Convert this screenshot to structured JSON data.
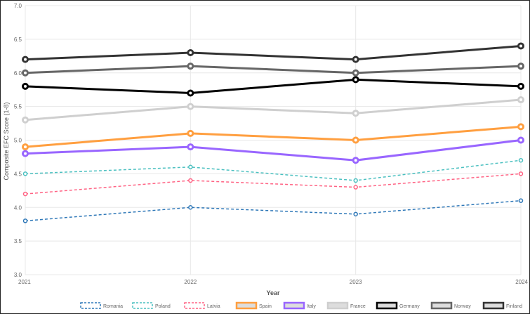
{
  "chart_data": {
    "type": "line",
    "xlabel": "Year",
    "ylabel": "Composite EFC Score (1-8)",
    "categories": [
      "2021",
      "2022",
      "2023",
      "2024"
    ],
    "ylim": [
      3.0,
      7.0
    ],
    "yticks": [
      "3.0",
      "3.5",
      "4.0",
      "4.5",
      "5.0",
      "5.5",
      "6.0",
      "6.5",
      "7.0"
    ],
    "grid": true,
    "legend": "bottom",
    "series": [
      {
        "name": "Romania",
        "values": [
          3.8,
          4.0,
          3.9,
          4.1
        ],
        "color": "#2f78b8",
        "dashed": true
      },
      {
        "name": "Poland",
        "values": [
          4.5,
          4.6,
          4.4,
          4.7
        ],
        "color": "#4bc0c0",
        "dashed": true
      },
      {
        "name": "Latvia",
        "values": [
          4.2,
          4.4,
          4.3,
          4.5
        ],
        "color": "#ff6384",
        "dashed": true
      },
      {
        "name": "Spain",
        "values": [
          4.9,
          5.1,
          5.0,
          5.2
        ],
        "color": "#ff9f40",
        "dashed": false
      },
      {
        "name": "Italy",
        "values": [
          4.8,
          4.9,
          4.7,
          5.0
        ],
        "color": "#9966ff",
        "dashed": false
      },
      {
        "name": "France",
        "values": [
          5.3,
          5.5,
          5.4,
          5.6
        ],
        "color": "#cfcfcf",
        "dashed": false
      },
      {
        "name": "Germany",
        "values": [
          5.8,
          5.7,
          5.9,
          5.8
        ],
        "color": "#000000",
        "dashed": false
      },
      {
        "name": "Norway",
        "values": [
          6.0,
          6.1,
          6.0,
          6.1
        ],
        "color": "#666666",
        "dashed": false
      },
      {
        "name": "Finland",
        "values": [
          6.2,
          6.3,
          6.2,
          6.4
        ],
        "color": "#333333",
        "dashed": false
      }
    ]
  }
}
